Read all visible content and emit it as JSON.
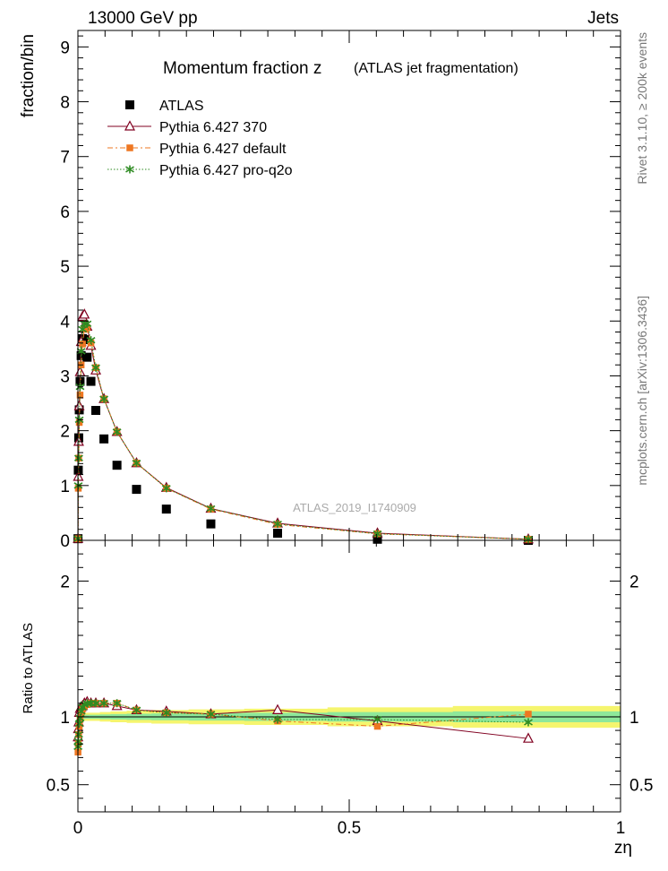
{
  "header": {
    "left": "13000 GeV pp",
    "right": "Jets"
  },
  "side_labels": {
    "rivet": "Rivet 3.1.10, ≥ 200k events",
    "mcplots": "mcplots.cern.ch [arXiv:1306.3436]"
  },
  "chart_data": {
    "type": "scatter",
    "title": "Momentum fraction z",
    "subtitle": "(ATLAS jet fragmentation)",
    "watermark": "ATLAS_2019_I1740909",
    "xlabel": "zη",
    "ylabel": "fraction/bin",
    "ratio_ylabel": "Ratio to ATLAS",
    "xlim": [
      0,
      1
    ],
    "ylim": [
      0,
      9.3
    ],
    "ratio_ylim": [
      0.3,
      2.3
    ],
    "x_ticks": [
      "0",
      "0.5",
      "1"
    ],
    "y_ticks": [
      "1",
      "2",
      "3",
      "4",
      "5",
      "6",
      "7",
      "8",
      "9"
    ],
    "ratio_ticks": [
      "0.5",
      "1",
      "2"
    ],
    "x": [
      0.0002,
      0.0007,
      0.0015,
      0.0025,
      0.004,
      0.006,
      0.0085,
      0.012,
      0.017,
      0.024,
      0.033,
      0.048,
      0.072,
      0.108,
      0.163,
      0.245,
      0.368,
      0.552,
      0.83
    ],
    "series": [
      {
        "name": "ATLAS",
        "marker": "square",
        "color": "#000000",
        "values": [
          0.03,
          1.28,
          1.87,
          2.38,
          2.9,
          3.37,
          3.68,
          3.66,
          3.34,
          2.9,
          2.37,
          1.85,
          1.37,
          0.93,
          0.57,
          0.3,
          0.13,
          0.02,
          0.0
        ]
      },
      {
        "name": "Pythia 6.427 370",
        "marker": "triangle",
        "color": "#800020",
        "values": [
          0.03,
          1.16,
          1.8,
          2.45,
          3.07,
          3.62,
          4.08,
          4.12,
          3.9,
          3.55,
          3.1,
          2.58,
          1.98,
          1.41,
          0.96,
          0.58,
          0.31,
          0.13,
          0.02
        ]
      },
      {
        "name": "Pythia 6.427 default",
        "marker": "filled-square",
        "color": "#ee7722",
        "values": [
          0.03,
          0.95,
          1.5,
          2.15,
          2.65,
          3.2,
          3.58,
          3.85,
          3.88,
          3.6,
          3.15,
          2.58,
          1.98,
          1.41,
          0.95,
          0.57,
          0.29,
          0.12,
          0.02
        ]
      },
      {
        "name": "Pythia 6.427 pro-q2o",
        "marker": "star",
        "color": "#2e8b22",
        "values": [
          0.03,
          1.0,
          1.5,
          2.2,
          2.8,
          3.45,
          3.85,
          3.95,
          3.95,
          3.65,
          3.15,
          2.58,
          1.98,
          1.41,
          0.95,
          0.58,
          0.3,
          0.12,
          0.02
        ]
      }
    ],
    "ratio_series": [
      {
        "name": "Pythia 6.427 370",
        "values": [
          0.85,
          0.91,
          0.96,
          1.03,
          1.06,
          1.07,
          1.08,
          1.1,
          1.11,
          1.1,
          1.1,
          1.1,
          1.08,
          1.05,
          1.04,
          1.02,
          1.05,
          0.97,
          0.84
        ]
      },
      {
        "name": "Pythia 6.427 default",
        "values": [
          0.74,
          0.8,
          0.87,
          0.93,
          0.98,
          1.03,
          1.06,
          1.08,
          1.09,
          1.1,
          1.1,
          1.1,
          1.1,
          1.05,
          1.03,
          1.02,
          0.97,
          0.93,
          1.02
        ]
      },
      {
        "name": "Pythia 6.427 pro-q2o",
        "values": [
          0.78,
          0.82,
          0.87,
          0.95,
          0.99,
          1.04,
          1.07,
          1.09,
          1.1,
          1.1,
          1.1,
          1.1,
          1.1,
          1.05,
          1.03,
          1.02,
          0.98,
          0.98,
          0.96
        ]
      }
    ]
  }
}
